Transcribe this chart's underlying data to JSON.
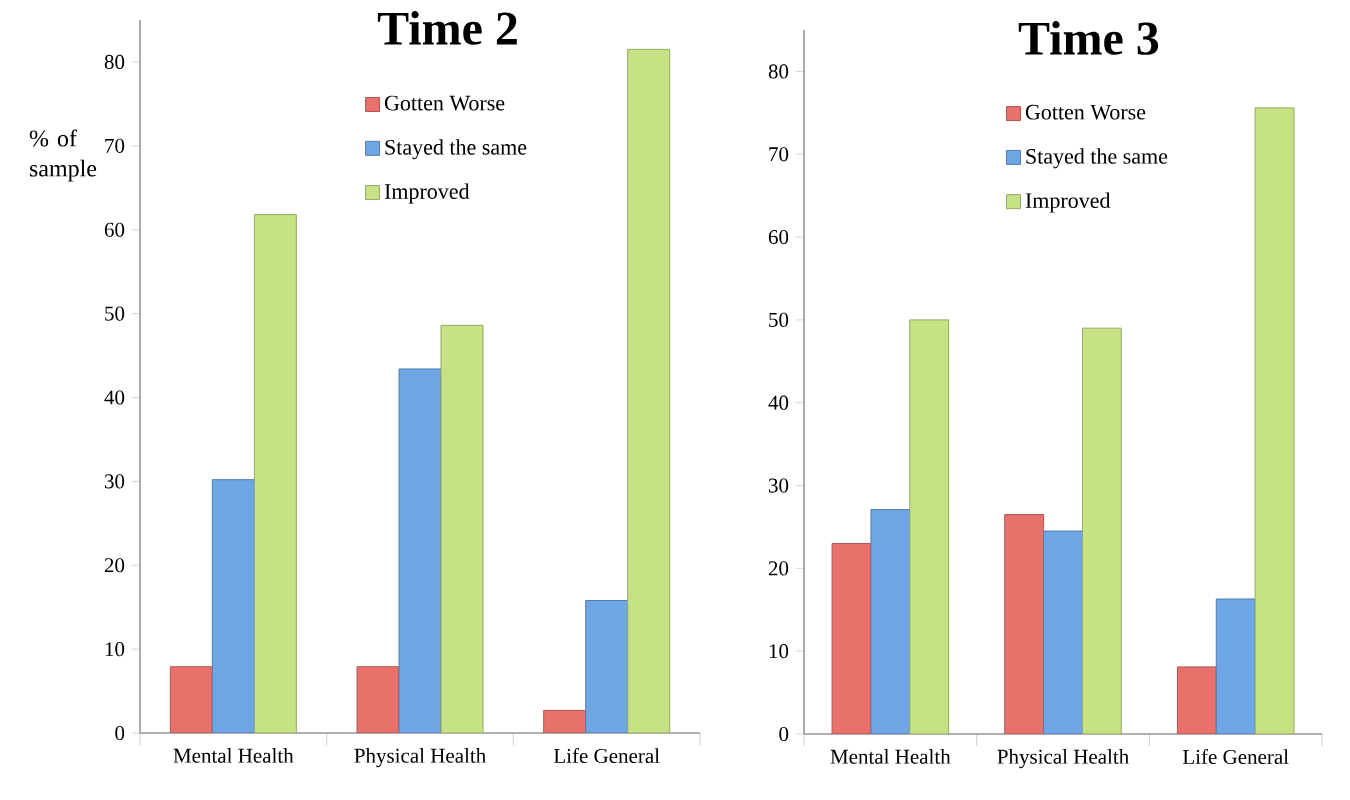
{
  "chart_data": [
    {
      "type": "bar",
      "title": "Time 2",
      "ylabel": "% of sample",
      "categories": [
        "Mental Health",
        "Physical Health",
        "Life General"
      ],
      "ylim": [
        0,
        85
      ],
      "yticks": [
        0,
        10,
        20,
        30,
        40,
        50,
        60,
        70,
        80
      ],
      "grid": false,
      "legend": "top",
      "series": [
        {
          "name": "Gotten Worse",
          "color": "#e9716b",
          "values": [
            7.9,
            7.9,
            2.7
          ]
        },
        {
          "name": "Stayed the same",
          "color": "#6ea6e6",
          "values": [
            30.2,
            43.4,
            15.8
          ]
        },
        {
          "name": "Improved",
          "color": "#c6e285",
          "values": [
            61.8,
            48.6,
            81.5
          ]
        }
      ]
    },
    {
      "type": "bar",
      "title": "Time 3",
      "categories": [
        "Mental Health",
        "Physical Health",
        "Life General"
      ],
      "ylim": [
        0,
        85
      ],
      "yticks": [
        0,
        10,
        20,
        30,
        40,
        50,
        60,
        70,
        80
      ],
      "grid": false,
      "legend": "top",
      "series": [
        {
          "name": "Gotten Worse",
          "color": "#e9716b",
          "values": [
            23.0,
            26.5,
            8.1
          ]
        },
        {
          "name": "Stayed the same",
          "color": "#6ea6e6",
          "values": [
            27.1,
            24.5,
            16.3
          ]
        },
        {
          "name": "Improved",
          "color": "#c6e285",
          "values": [
            50.0,
            49.0,
            75.6
          ]
        }
      ]
    }
  ]
}
